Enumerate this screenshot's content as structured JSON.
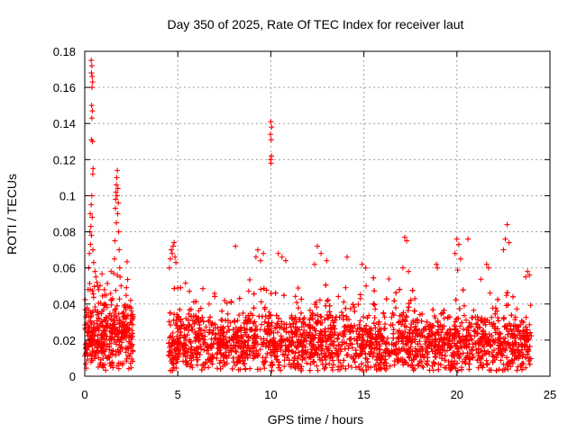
{
  "chart_data": {
    "type": "scatter",
    "title": "Day 350 of 2025, Rate Of TEC Index for receiver laut",
    "xlabel": "GPS time / hours",
    "ylabel": "ROTI / TECUs",
    "xlim": [
      0,
      25
    ],
    "ylim": [
      0,
      0.18
    ],
    "x_ticks": [
      "0",
      "5",
      "10",
      "15",
      "20",
      "25"
    ],
    "y_ticks": [
      "0",
      "0.02",
      "0.04",
      "0.06",
      "0.08",
      "0.1",
      "0.12",
      "0.14",
      "0.16",
      "0.18"
    ],
    "grid": true,
    "marker": "plus",
    "series": [
      {
        "name": "ROTI",
        "color": "#ff0000",
        "segments": [
          {
            "x_start": 0.0,
            "x_end": 2.6,
            "base": 0.022,
            "spread": 0.018
          },
          {
            "x_start": 4.5,
            "x_end": 24.0,
            "base": 0.018,
            "spread": 0.016
          }
        ],
        "points": [
          [
            0.35,
            0.175
          ],
          [
            0.38,
            0.172
          ],
          [
            0.36,
            0.168
          ],
          [
            0.4,
            0.166
          ],
          [
            0.42,
            0.163
          ],
          [
            0.39,
            0.16
          ],
          [
            0.37,
            0.15
          ],
          [
            0.41,
            0.147
          ],
          [
            0.38,
            0.143
          ],
          [
            0.36,
            0.131
          ],
          [
            0.42,
            0.13
          ],
          [
            0.45,
            0.115
          ],
          [
            0.43,
            0.112
          ],
          [
            0.38,
            0.1
          ],
          [
            0.35,
            0.095
          ],
          [
            0.3,
            0.09
          ],
          [
            0.4,
            0.088
          ],
          [
            0.33,
            0.083
          ],
          [
            0.28,
            0.08
          ],
          [
            0.36,
            0.078
          ],
          [
            0.31,
            0.073
          ],
          [
            0.44,
            0.07
          ],
          [
            0.25,
            0.068
          ],
          [
            0.48,
            0.063
          ],
          [
            0.22,
            0.06
          ],
          [
            0.55,
            0.058
          ],
          [
            0.6,
            0.055
          ],
          [
            0.65,
            0.052
          ],
          [
            0.7,
            0.05
          ],
          [
            0.75,
            0.048
          ],
          [
            1.75,
            0.114
          ],
          [
            1.72,
            0.11
          ],
          [
            1.7,
            0.106
          ],
          [
            1.78,
            0.104
          ],
          [
            1.68,
            0.102
          ],
          [
            1.74,
            0.1
          ],
          [
            1.66,
            0.098
          ],
          [
            1.8,
            0.096
          ],
          [
            1.65,
            0.093
          ],
          [
            1.77,
            0.09
          ],
          [
            1.7,
            0.085
          ],
          [
            1.82,
            0.08
          ],
          [
            1.62,
            0.075
          ],
          [
            1.85,
            0.07
          ],
          [
            1.6,
            0.065
          ],
          [
            1.88,
            0.06
          ],
          [
            1.55,
            0.057
          ],
          [
            1.9,
            0.055
          ],
          [
            1.95,
            0.05
          ],
          [
            10.0,
            0.141
          ],
          [
            10.04,
            0.138
          ],
          [
            9.98,
            0.134
          ],
          [
            10.02,
            0.131
          ],
          [
            10.03,
            0.122
          ],
          [
            9.99,
            0.12
          ],
          [
            10.01,
            0.118
          ],
          [
            4.65,
            0.07
          ],
          [
            4.7,
            0.068
          ],
          [
            4.75,
            0.072
          ],
          [
            4.8,
            0.074
          ],
          [
            4.6,
            0.065
          ],
          [
            4.85,
            0.066
          ],
          [
            4.9,
            0.063
          ],
          [
            4.55,
            0.06
          ],
          [
            8.1,
            0.072
          ],
          [
            9.3,
            0.07
          ],
          [
            9.6,
            0.068
          ],
          [
            9.2,
            0.066
          ],
          [
            9.45,
            0.064
          ],
          [
            10.4,
            0.068
          ],
          [
            10.6,
            0.066
          ],
          [
            10.8,
            0.064
          ],
          [
            12.5,
            0.072
          ],
          [
            12.7,
            0.068
          ],
          [
            13.0,
            0.064
          ],
          [
            12.35,
            0.062
          ],
          [
            14.1,
            0.066
          ],
          [
            14.9,
            0.062
          ],
          [
            15.1,
            0.06
          ],
          [
            17.2,
            0.077
          ],
          [
            17.3,
            0.075
          ],
          [
            17.1,
            0.06
          ],
          [
            17.4,
            0.058
          ],
          [
            18.9,
            0.062
          ],
          [
            18.95,
            0.06
          ],
          [
            20.0,
            0.076
          ],
          [
            20.1,
            0.073
          ],
          [
            20.6,
            0.076
          ],
          [
            19.9,
            0.068
          ],
          [
            20.2,
            0.065
          ],
          [
            21.6,
            0.062
          ],
          [
            21.7,
            0.06
          ],
          [
            22.7,
            0.084
          ],
          [
            22.6,
            0.076
          ],
          [
            22.8,
            0.074
          ],
          [
            22.5,
            0.07
          ],
          [
            23.8,
            0.058
          ],
          [
            23.9,
            0.056
          ],
          [
            23.7,
            0.055
          ]
        ]
      }
    ]
  }
}
